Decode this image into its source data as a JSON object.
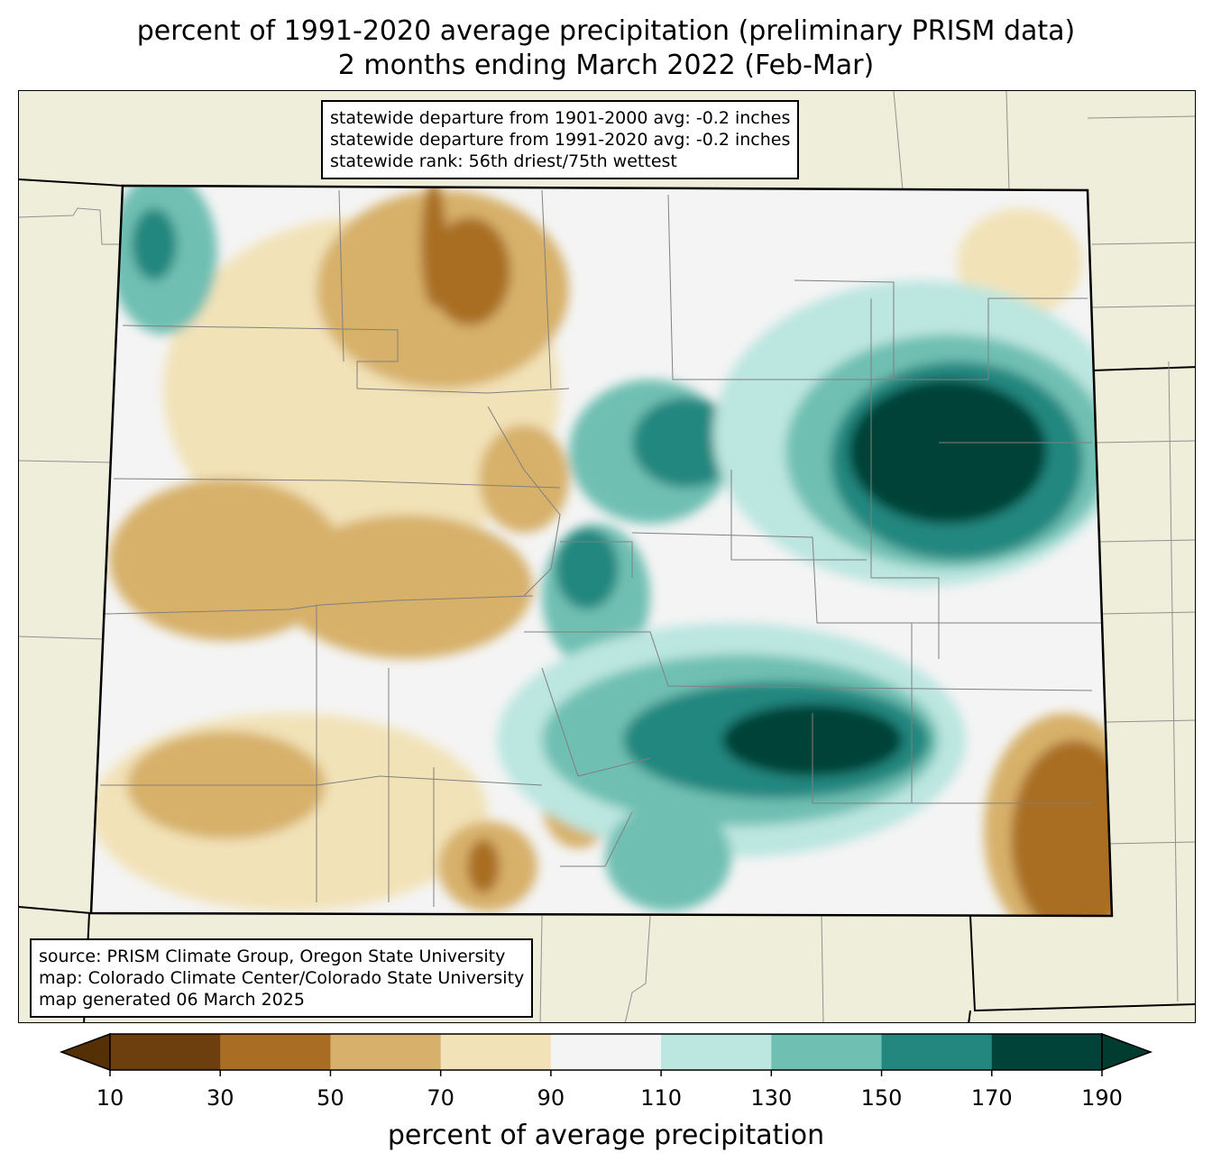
{
  "title": {
    "line1": "percent of 1991-2020 average precipitation (preliminary PRISM data)",
    "line2": "2 months ending March 2022 (Feb-Mar)"
  },
  "stats_box": {
    "line1": "statewide departure from 1901-2000 avg: -0.2 inches",
    "line2": "statewide departure from 1991-2020 avg: -0.2 inches",
    "line3": "statewide rank: 56th driest/75th wettest"
  },
  "source_box": {
    "line1": "source: PRISM Climate Group, Oregon State University",
    "line2": "map: Colorado Climate Center/Colorado State University",
    "line3": "map generated 06 March 2025"
  },
  "colorbar": {
    "label": "percent of average precipitation",
    "ticks": [
      "10",
      "30",
      "50",
      "70",
      "90",
      "110",
      "130",
      "150",
      "170",
      "190"
    ],
    "colors": [
      "#6e3f0e",
      "#a96e24",
      "#d7b16b",
      "#f2e2b8",
      "#f4f4f4",
      "#bce6e0",
      "#6fbfb3",
      "#23877f",
      "#014338"
    ],
    "under_color": "#553006",
    "over_color": "#003c30"
  },
  "map_colors": {
    "outside_state": "#efeedb",
    "state_border": "#000000",
    "county_lines": "#808080"
  }
}
